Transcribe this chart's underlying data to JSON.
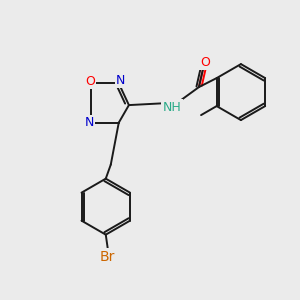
{
  "bg_color": "#ebebeb",
  "bond_color": "#1a1a1a",
  "colors": {
    "O": "#ff0000",
    "N": "#0000cc",
    "Br": "#cc6600",
    "C": "#1a1a1a",
    "NH": "#2aaa88"
  },
  "font_size_atom": 9,
  "font_size_label": 8,
  "lw": 1.4
}
